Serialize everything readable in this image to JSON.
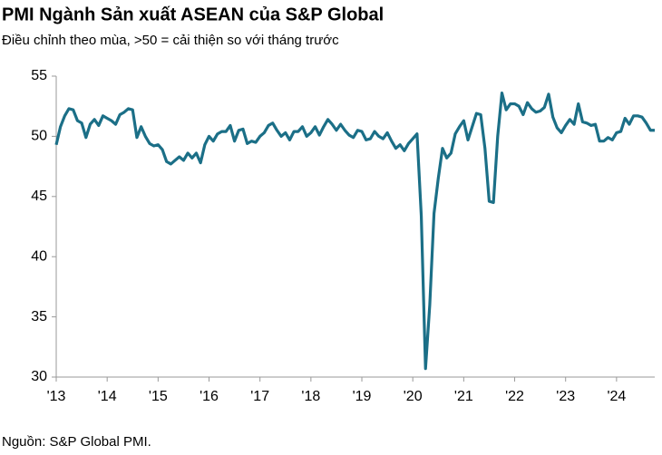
{
  "chart_data": {
    "type": "line",
    "title": "PMI Ngành Sản xuất ASEAN của S&P Global",
    "subtitle": "Điều chỉnh theo mùa, >50 = cải thiện so với tháng trước",
    "source": "Nguồn: S&P Global PMI.",
    "color": "#1b6f87",
    "categories": [
      "'13",
      null,
      null,
      null,
      null,
      null,
      null,
      null,
      null,
      null,
      null,
      null,
      "'14",
      null,
      null,
      null,
      null,
      null,
      null,
      null,
      null,
      null,
      null,
      null,
      "'15",
      null,
      null,
      null,
      null,
      null,
      null,
      null,
      null,
      null,
      null,
      null,
      "'16",
      null,
      null,
      null,
      null,
      null,
      null,
      null,
      null,
      null,
      null,
      null,
      "'17",
      null,
      null,
      null,
      null,
      null,
      null,
      null,
      null,
      null,
      null,
      null,
      "'18",
      null,
      null,
      null,
      null,
      null,
      null,
      null,
      null,
      null,
      null,
      null,
      "'19",
      null,
      null,
      null,
      null,
      null,
      null,
      null,
      null,
      null,
      null,
      null,
      "'20",
      null,
      null,
      null,
      null,
      null,
      null,
      null,
      null,
      null,
      null,
      null,
      "'21",
      null,
      null,
      null,
      null,
      null,
      null,
      null,
      null,
      null,
      null,
      null,
      "'22",
      null,
      null,
      null,
      null,
      null,
      null,
      null,
      null,
      null,
      null,
      null,
      "'23",
      null,
      null,
      null,
      null,
      null,
      null,
      null,
      null,
      null,
      null,
      null,
      "'24",
      null,
      null,
      null,
      null,
      null,
      null,
      null,
      null,
      null
    ],
    "values": [
      49.3,
      50.8,
      51.7,
      52.3,
      52.2,
      51.3,
      51.1,
      49.9,
      51.0,
      51.4,
      50.9,
      51.7,
      51.5,
      51.3,
      51.0,
      51.8,
      52.0,
      52.3,
      52.2,
      49.9,
      50.8,
      50.0,
      49.4,
      49.2,
      49.3,
      48.9,
      47.9,
      47.7,
      48.0,
      48.3,
      48.0,
      48.6,
      48.2,
      48.6,
      47.8,
      49.3,
      50.0,
      49.6,
      50.2,
      50.4,
      50.4,
      50.9,
      49.6,
      50.5,
      50.6,
      49.4,
      49.6,
      49.5,
      50.0,
      50.3,
      50.9,
      51.1,
      50.5,
      50.0,
      50.3,
      49.7,
      50.4,
      50.4,
      50.8,
      50.0,
      50.3,
      50.8,
      50.1,
      50.8,
      51.4,
      51.0,
      50.5,
      51.0,
      50.5,
      50.1,
      49.9,
      50.5,
      50.4,
      49.7,
      49.8,
      50.4,
      50.0,
      49.8,
      50.3,
      49.6,
      49.0,
      49.3,
      48.8,
      49.4,
      49.8,
      50.2,
      43.4,
      30.7,
      36.0,
      43.6,
      46.5,
      49.0,
      48.2,
      48.6,
      50.2,
      50.8,
      51.3,
      49.7,
      50.8,
      51.9,
      51.8,
      49.0,
      44.6,
      44.5,
      50.0,
      53.6,
      52.2,
      52.7,
      52.7,
      52.5,
      51.8,
      52.8,
      52.3,
      52.0,
      52.1,
      52.4,
      53.5,
      51.6,
      50.7,
      50.3,
      50.9,
      51.4,
      51.0,
      52.7,
      51.2,
      51.1,
      50.9,
      51.0,
      49.6,
      49.6,
      49.9,
      49.7,
      50.3,
      50.4,
      51.5,
      51.0,
      51.7,
      51.7,
      51.6,
      51.1,
      50.5,
      50.5
    ],
    "ylim": [
      30,
      55
    ],
    "yticks": [
      30,
      35,
      40,
      45,
      50,
      55
    ]
  }
}
